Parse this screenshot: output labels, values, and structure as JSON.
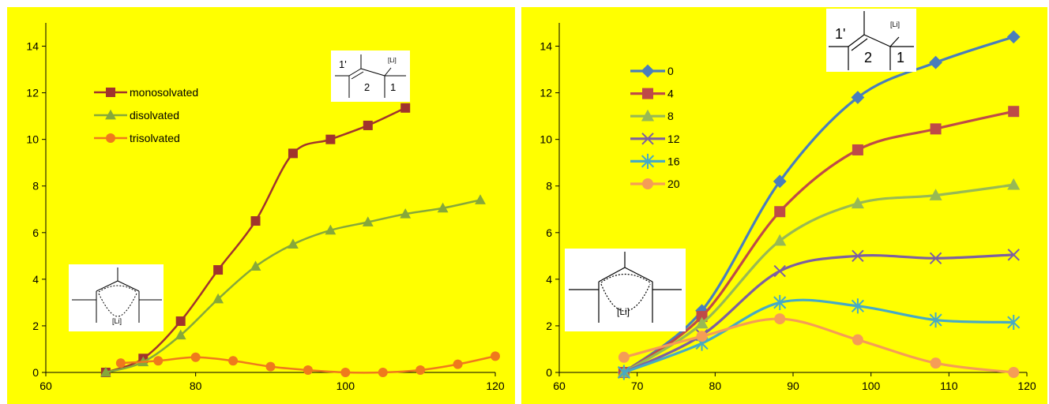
{
  "chart_data": [
    {
      "type": "line",
      "xlim": [
        60,
        120
      ],
      "ylim": [
        0,
        15
      ],
      "x_ticks": [
        60,
        80,
        100,
        120
      ],
      "y_ticks": [
        0,
        2,
        4,
        6,
        8,
        10,
        12,
        14
      ],
      "grid": false,
      "legend_position": "top-left",
      "series": [
        {
          "name": "monosolvated",
          "marker": "square",
          "color": "#a0342d",
          "x": [
            68,
            73,
            78,
            83,
            88,
            93,
            98,
            103,
            108
          ],
          "y": [
            0,
            0.6,
            2.2,
            4.4,
            6.5,
            9.4,
            10.0,
            10.6,
            11.35
          ]
        },
        {
          "name": "disolvated",
          "marker": "triangle",
          "color": "#86a83a",
          "x": [
            68,
            73,
            78,
            83,
            88,
            93,
            98,
            103,
            108,
            113,
            118
          ],
          "y": [
            0,
            0.45,
            1.6,
            3.15,
            4.55,
            5.5,
            6.1,
            6.45,
            6.8,
            7.05,
            7.4
          ]
        },
        {
          "name": "trisolvated",
          "marker": "circle",
          "color": "#ef7a1c",
          "x": [
            70,
            75,
            80,
            85,
            90,
            95,
            100,
            105,
            110,
            115,
            120
          ],
          "y": [
            0.4,
            0.5,
            0.65,
            0.5,
            0.25,
            0.1,
            0.0,
            0.0,
            0.1,
            0.35,
            0.7
          ]
        }
      ],
      "insets": {
        "top_structure_labels": [
          "1'",
          "2",
          "1",
          "[Li]"
        ],
        "bottom_structure_labels": [
          "[Li]"
        ]
      }
    },
    {
      "type": "line",
      "xlim": [
        60,
        120
      ],
      "ylim": [
        0,
        15
      ],
      "x_ticks": [
        60,
        70,
        80,
        90,
        100,
        110,
        120
      ],
      "y_ticks": [
        0,
        2,
        4,
        6,
        8,
        10,
        12,
        14
      ],
      "grid": false,
      "legend_position": "top-left",
      "series": [
        {
          "name": "0",
          "marker": "diamond",
          "color": "#4a7ebb",
          "x": [
            68.3,
            78.3,
            88.3,
            98.3,
            108.3,
            118.3
          ],
          "y": [
            0,
            2.65,
            8.2,
            11.8,
            13.3,
            14.4
          ]
        },
        {
          "name": "4",
          "marker": "square",
          "color": "#be4b48",
          "x": [
            68.3,
            78.3,
            88.3,
            98.3,
            108.3,
            118.3
          ],
          "y": [
            0,
            2.4,
            6.9,
            9.55,
            10.45,
            11.2
          ]
        },
        {
          "name": "8",
          "marker": "triangle",
          "color": "#98b954",
          "x": [
            68.3,
            78.3,
            88.3,
            98.3,
            108.3,
            118.3
          ],
          "y": [
            0,
            2.1,
            5.65,
            7.25,
            7.6,
            8.05
          ]
        },
        {
          "name": "12",
          "marker": "x",
          "color": "#7d60a0",
          "x": [
            68.3,
            78.3,
            88.3,
            98.3,
            108.3,
            118.3
          ],
          "y": [
            0,
            1.6,
            4.35,
            5.0,
            4.9,
            5.05
          ]
        },
        {
          "name": "16",
          "marker": "star",
          "color": "#46aac5",
          "x": [
            68.3,
            78.3,
            88.3,
            98.3,
            108.3,
            118.3
          ],
          "y": [
            0,
            1.25,
            3.0,
            2.85,
            2.25,
            2.15
          ]
        },
        {
          "name": "20",
          "marker": "circle",
          "color": "#f59d56",
          "x": [
            68.3,
            78.3,
            88.3,
            98.3,
            108.3,
            118.3
          ],
          "y": [
            0.65,
            1.55,
            2.3,
            1.4,
            0.4,
            0.0
          ]
        }
      ],
      "insets": {
        "top_structure_labels": [
          "1'",
          "2",
          "1",
          "[Li]"
        ],
        "bottom_structure_labels": [
          "[Li]"
        ]
      }
    }
  ]
}
